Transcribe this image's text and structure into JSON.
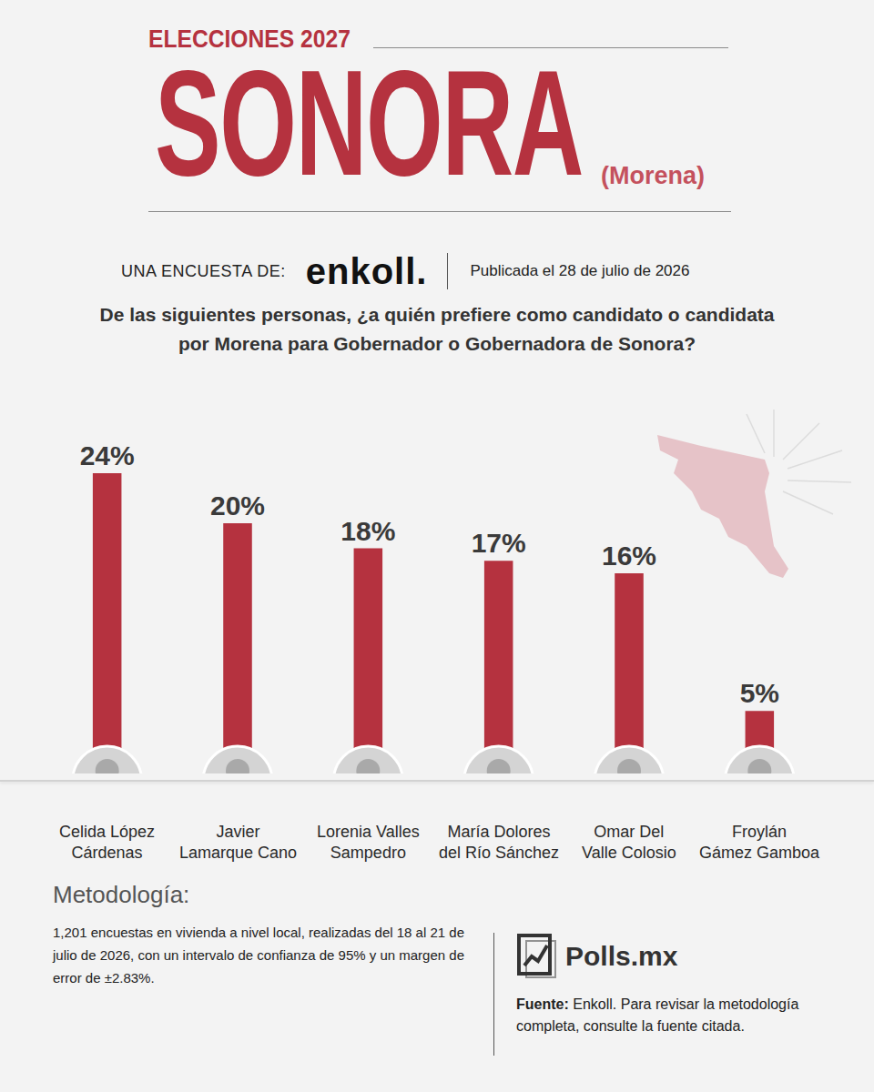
{
  "header": {
    "kicker": "ELECCIONES 2027",
    "title": "SONORA",
    "party": "(Morena)",
    "survey_by_label": "UNA ENCUESTA DE:",
    "pollster": "enkoll.",
    "published": "Publicada el 28 de julio de 2026"
  },
  "chart_data": {
    "type": "bar",
    "title": "De las siguientes personas, ¿a quién prefiere como candidato o candidata por Morena para Gobernador o Gobernadora de Sonora?",
    "categories": [
      "Celida López Cárdenas",
      "Javier Lamarque Cano",
      "Lorenia Valles Sampedro",
      "María Dolores del Río Sánchez",
      "Omar Del Valle Colosio",
      "Froylán Gámez Gamboa"
    ],
    "values": [
      24,
      20,
      18,
      17,
      16,
      5
    ],
    "value_labels": [
      "24%",
      "20%",
      "18%",
      "17%",
      "16%",
      "5%"
    ],
    "data_labels": true,
    "color": "#b5323f",
    "ylim": [
      0,
      24
    ],
    "yticks": [],
    "tick_labels": "x",
    "grid": false
  },
  "footer": {
    "methodology_title": "Metodología:",
    "methodology_text": "1,201 encuestas en vivienda a nivel local, realizadas del 18 al 21 de julio de 2026, con un intervalo de confianza de 95% y un margen de error de ±2.83%.",
    "brand": "Polls.mx",
    "source_label": "Fuente:",
    "source_text": "Enkoll. Para revisar la metodología completa, consulte la fuente citada."
  }
}
